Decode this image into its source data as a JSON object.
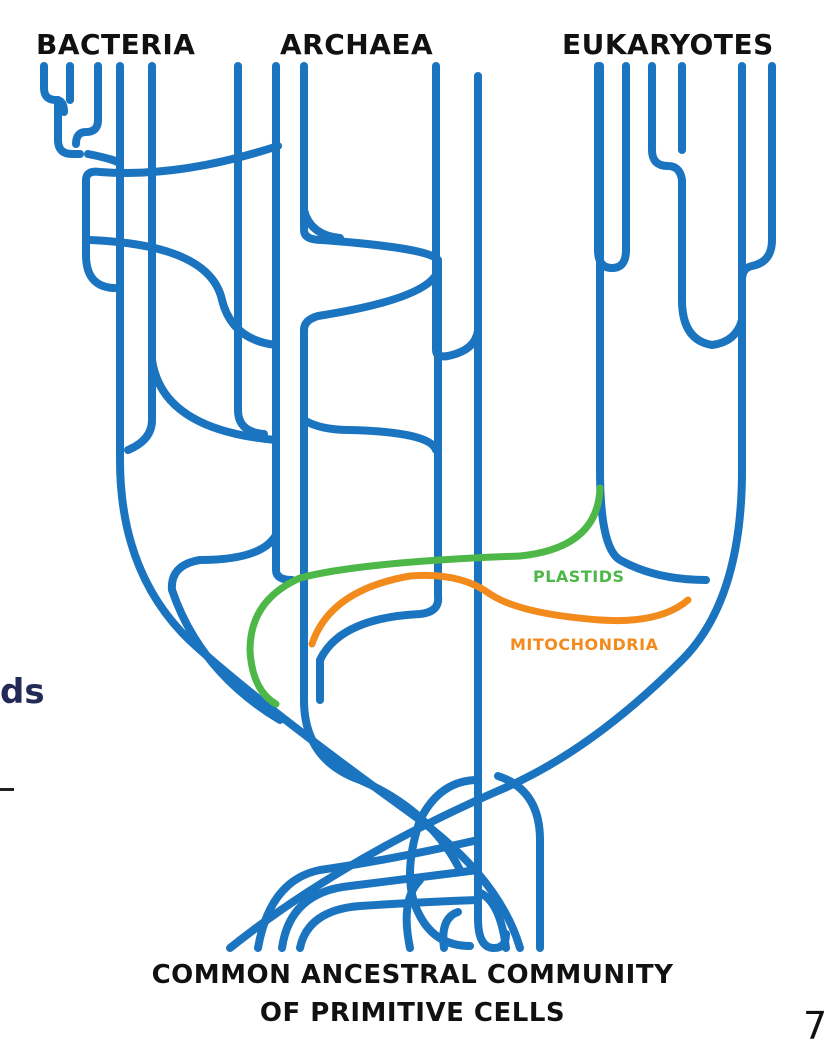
{
  "diagram": {
    "domain_labels": {
      "bacteria": "BACTERIA",
      "archaea": "ARCHAEA",
      "eukaryotes": "EUKARYOTES"
    },
    "organelle_labels": {
      "plastids": "PLASTIDS",
      "mitochondria": "MITOCHONDRIA"
    },
    "root_label": {
      "line1": "COMMON ANCESTRAL COMMUNITY",
      "line2": "OF PRIMITIVE CELLS"
    },
    "colors": {
      "branch": "#1b74bf",
      "plastids": "#4db848",
      "mitochondria": "#f28a1c"
    }
  },
  "slide_fragments": {
    "left_text": "ds",
    "page_number": "7"
  }
}
